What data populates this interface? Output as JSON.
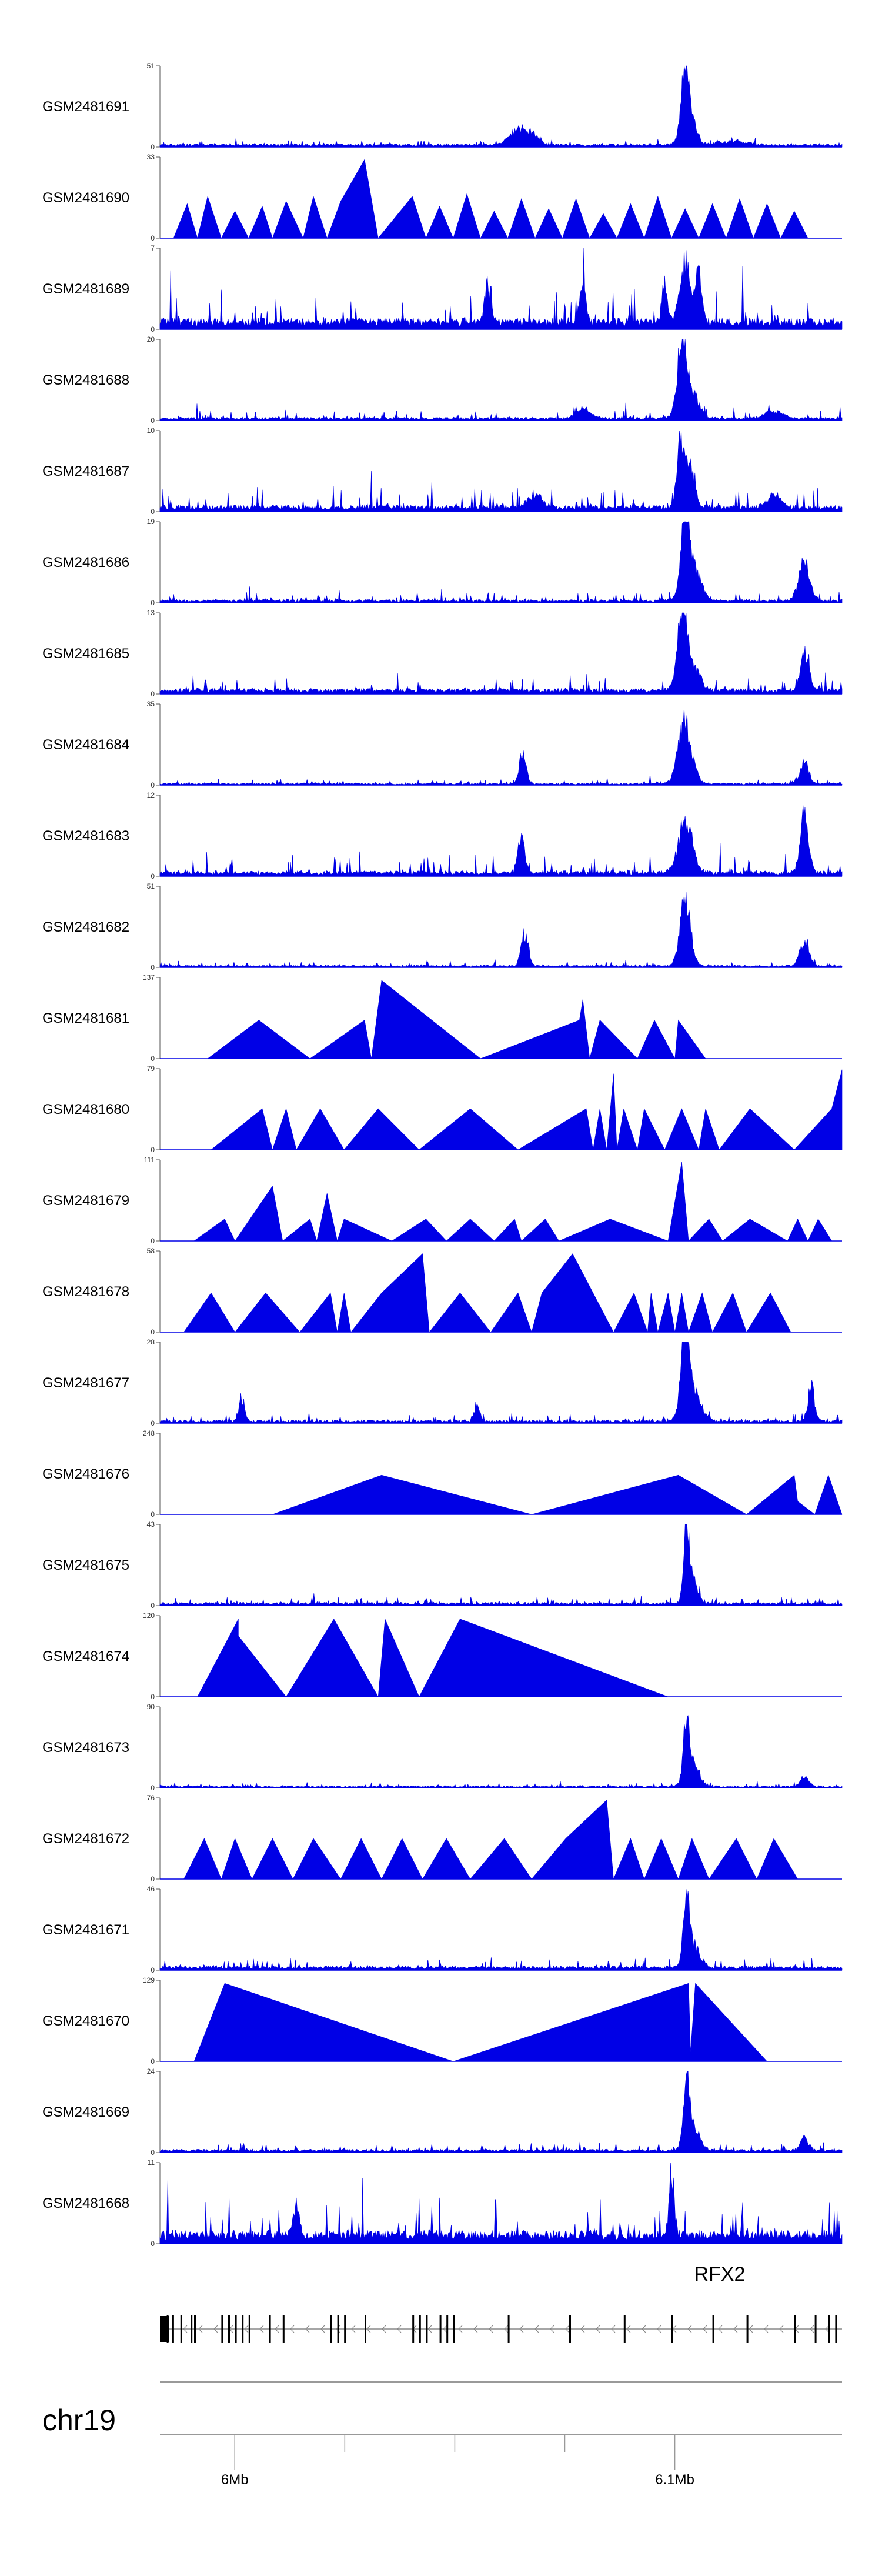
{
  "figure": {
    "gene_name": "RFX2",
    "chromosome": "chr19",
    "strand": "minus",
    "axis_tick_labels": [
      "6Mb",
      "6.1Mb"
    ]
  },
  "chart_data": {
    "type": "area",
    "title": "",
    "xlabel": "chr19",
    "ylabel": "",
    "genome_region": {
      "chromosome": "chr19",
      "start_bp": 5983000,
      "end_bp": 6138000
    },
    "x_ticks": [
      {
        "pos_bp": 6000000,
        "label": "6Mb"
      },
      {
        "pos_bp": 6100000,
        "label": "6.1Mb"
      }
    ],
    "x_minor_ticks_bp": [
      6025000,
      6050000,
      6075000
    ],
    "fill_color": "#0000e6",
    "tracks": [
      {
        "name": "GSM2481691",
        "ymin": 0,
        "ymax": 51,
        "style": "continuous",
        "baseline": 0.03,
        "noise": 0.05,
        "seed": 11,
        "peaks": [
          [
            0.525,
            0.012,
            0.24
          ],
          [
            0.545,
            0.01,
            0.15
          ],
          [
            0.77,
            0.005,
            0.96
          ],
          [
            0.775,
            0.01,
            0.45
          ],
          [
            0.84,
            0.02,
            0.06
          ]
        ]
      },
      {
        "name": "GSM2481690",
        "ymin": 0,
        "ymax": 33,
        "style": "triangles",
        "seed": 12,
        "x": [
          0.02,
          0.04,
          0.055,
          0.07,
          0.09,
          0.11,
          0.13,
          0.15,
          0.165,
          0.185,
          0.21,
          0.225,
          0.245,
          0.265,
          0.3,
          0.32,
          0.37,
          0.39,
          0.41,
          0.43,
          0.45,
          0.47,
          0.49,
          0.51,
          0.53,
          0.55,
          0.57,
          0.59,
          0.61,
          0.63,
          0.65,
          0.67,
          0.69,
          0.71,
          0.73,
          0.75,
          0.77,
          0.79,
          0.81,
          0.83,
          0.85,
          0.87,
          0.89,
          0.91,
          0.93,
          0.95,
          0.97
        ],
        "y": [
          0,
          14,
          0,
          17,
          0,
          11,
          0,
          13,
          0,
          15,
          0,
          17,
          0,
          15,
          32,
          0,
          17,
          0,
          13,
          0,
          18,
          0,
          11,
          0,
          16,
          0,
          12,
          0,
          16,
          0,
          10,
          0,
          14,
          0,
          17,
          0,
          12,
          0,
          14,
          0,
          16,
          0,
          14,
          0,
          11,
          0,
          0
        ]
      },
      {
        "name": "GSM2481689",
        "ymin": 0,
        "ymax": 7,
        "style": "continuous",
        "baseline": 0.1,
        "noise": 0.42,
        "seed": 13,
        "peaks": [
          [
            0.77,
            0.008,
            0.95
          ],
          [
            0.79,
            0.005,
            0.7
          ],
          [
            0.74,
            0.004,
            0.6
          ],
          [
            0.62,
            0.004,
            0.65
          ],
          [
            0.48,
            0.004,
            0.6
          ]
        ]
      },
      {
        "name": "GSM2481688",
        "ymin": 0,
        "ymax": 20,
        "style": "continuous",
        "baseline": 0.03,
        "noise": 0.1,
        "seed": 14,
        "peaks": [
          [
            0.765,
            0.006,
            0.92
          ],
          [
            0.775,
            0.012,
            0.5
          ],
          [
            0.62,
            0.01,
            0.15
          ],
          [
            0.9,
            0.012,
            0.12
          ]
        ]
      },
      {
        "name": "GSM2481687",
        "ymin": 0,
        "ymax": 10,
        "style": "continuous",
        "baseline": 0.06,
        "noise": 0.25,
        "seed": 15,
        "peaks": [
          [
            0.762,
            0.004,
            0.95
          ],
          [
            0.775,
            0.008,
            0.75
          ],
          [
            0.55,
            0.01,
            0.2
          ],
          [
            0.9,
            0.01,
            0.2
          ]
        ]
      },
      {
        "name": "GSM2481686",
        "ymin": 0,
        "ymax": 19,
        "style": "continuous",
        "baseline": 0.03,
        "noise": 0.1,
        "seed": 16,
        "peaks": [
          [
            0.77,
            0.006,
            0.95
          ],
          [
            0.78,
            0.012,
            0.55
          ],
          [
            0.945,
            0.008,
            0.6
          ]
        ]
      },
      {
        "name": "GSM2481685",
        "ymin": 0,
        "ymax": 13,
        "style": "continuous",
        "baseline": 0.05,
        "noise": 0.18,
        "seed": 17,
        "peaks": [
          [
            0.765,
            0.006,
            0.92
          ],
          [
            0.775,
            0.012,
            0.55
          ],
          [
            0.945,
            0.006,
            0.55
          ]
        ]
      },
      {
        "name": "GSM2481684",
        "ymin": 0,
        "ymax": 35,
        "style": "continuous",
        "baseline": 0.02,
        "noise": 0.05,
        "seed": 18,
        "peaks": [
          [
            0.532,
            0.005,
            0.5
          ],
          [
            0.77,
            0.01,
            0.95
          ],
          [
            0.945,
            0.006,
            0.35
          ]
        ]
      },
      {
        "name": "GSM2481683",
        "ymin": 0,
        "ymax": 12,
        "style": "continuous",
        "baseline": 0.05,
        "noise": 0.2,
        "seed": 19,
        "peaks": [
          [
            0.53,
            0.005,
            0.5
          ],
          [
            0.77,
            0.01,
            0.85
          ],
          [
            0.945,
            0.006,
            0.95
          ]
        ]
      },
      {
        "name": "GSM2481682",
        "ymin": 0,
        "ymax": 51,
        "style": "continuous",
        "baseline": 0.02,
        "noise": 0.05,
        "seed": 20,
        "peaks": [
          [
            0.535,
            0.005,
            0.55
          ],
          [
            0.77,
            0.008,
            0.95
          ],
          [
            0.945,
            0.007,
            0.4
          ]
        ]
      },
      {
        "name": "GSM2481681",
        "ymin": 0,
        "ymax": 137,
        "style": "triangles",
        "seed": 21,
        "x": [
          0.07,
          0.145,
          0.22,
          0.3,
          0.31,
          0.325,
          0.47,
          0.615,
          0.62,
          0.63,
          0.645,
          0.7,
          0.725,
          0.755,
          0.76,
          0.8,
          0.915
        ],
        "y": [
          0,
          65,
          0,
          65,
          0,
          132,
          0,
          65,
          100,
          0,
          65,
          0,
          65,
          0,
          65,
          0,
          0
        ]
      },
      {
        "name": "GSM2481680",
        "ymin": 0,
        "ymax": 79,
        "style": "triangles",
        "seed": 22,
        "x": [
          0.075,
          0.15,
          0.165,
          0.185,
          0.2,
          0.235,
          0.27,
          0.32,
          0.38,
          0.455,
          0.525,
          0.625,
          0.635,
          0.645,
          0.655,
          0.665,
          0.67,
          0.68,
          0.7,
          0.71,
          0.74,
          0.765,
          0.79,
          0.8,
          0.82,
          0.865,
          0.93,
          0.985,
          1.0
        ],
        "y": [
          0,
          40,
          0,
          40,
          0,
          40,
          0,
          40,
          0,
          40,
          0,
          40,
          0,
          40,
          0,
          74,
          0,
          40,
          0,
          40,
          0,
          40,
          0,
          40,
          0,
          40,
          0,
          40,
          78
        ]
      },
      {
        "name": "GSM2481679",
        "ymin": 0,
        "ymax": 111,
        "style": "triangles",
        "seed": 23,
        "x": [
          0.05,
          0.095,
          0.11,
          0.165,
          0.18,
          0.22,
          0.23,
          0.245,
          0.26,
          0.27,
          0.34,
          0.39,
          0.42,
          0.455,
          0.49,
          0.52,
          0.53,
          0.565,
          0.585,
          0.66,
          0.745,
          0.765,
          0.775,
          0.805,
          0.825,
          0.865,
          0.92,
          0.935,
          0.95,
          0.965,
          0.985
        ],
        "y": [
          0,
          30,
          0,
          75,
          0,
          30,
          0,
          65,
          0,
          30,
          0,
          30,
          0,
          30,
          0,
          30,
          0,
          30,
          0,
          30,
          0,
          108,
          0,
          30,
          0,
          30,
          0,
          30,
          0,
          30,
          0
        ]
      },
      {
        "name": "GSM2481678",
        "ymin": 0,
        "ymax": 58,
        "style": "triangles",
        "seed": 24,
        "x": [
          0.035,
          0.075,
          0.11,
          0.155,
          0.205,
          0.25,
          0.26,
          0.27,
          0.28,
          0.325,
          0.385,
          0.395,
          0.44,
          0.485,
          0.525,
          0.545,
          0.56,
          0.605,
          0.665,
          0.695,
          0.715,
          0.72,
          0.73,
          0.745,
          0.755,
          0.765,
          0.775,
          0.795,
          0.81,
          0.84,
          0.86,
          0.895,
          0.925,
          0.975
        ],
        "y": [
          0,
          28,
          0,
          28,
          0,
          28,
          0,
          28,
          0,
          28,
          56,
          0,
          28,
          0,
          28,
          0,
          28,
          56,
          0,
          28,
          0,
          28,
          0,
          28,
          0,
          28,
          0,
          28,
          0,
          28,
          0,
          28,
          0,
          0
        ]
      },
      {
        "name": "GSM2481677",
        "ymin": 0,
        "ymax": 28,
        "style": "continuous",
        "baseline": 0.03,
        "noise": 0.08,
        "seed": 25,
        "peaks": [
          [
            0.12,
            0.004,
            0.35
          ],
          [
            0.465,
            0.004,
            0.28
          ],
          [
            0.77,
            0.006,
            0.95
          ],
          [
            0.78,
            0.012,
            0.5
          ],
          [
            0.955,
            0.005,
            0.55
          ]
        ]
      },
      {
        "name": "GSM2481676",
        "ymin": 0,
        "ymax": 248,
        "style": "triangles",
        "seed": 26,
        "x": [
          0.165,
          0.325,
          0.545,
          0.76,
          0.86,
          0.93,
          0.935,
          0.96,
          0.98,
          1.0
        ],
        "y": [
          0,
          120,
          0,
          120,
          0,
          120,
          40,
          0,
          120,
          0
        ]
      },
      {
        "name": "GSM2481675",
        "ymin": 0,
        "ymax": 43,
        "style": "continuous",
        "baseline": 0.03,
        "noise": 0.08,
        "seed": 27,
        "peaks": [
          [
            0.772,
            0.004,
            0.95
          ],
          [
            0.78,
            0.008,
            0.4
          ]
        ]
      },
      {
        "name": "GSM2481674",
        "ymin": 0,
        "ymax": 120,
        "style": "triangles",
        "seed": 28,
        "x": [
          0.055,
          0.115,
          0.115,
          0.185,
          0.255,
          0.32,
          0.33,
          0.38,
          0.44,
          0.745
        ],
        "y": [
          0,
          115,
          90,
          0,
          115,
          0,
          115,
          0,
          115,
          0
        ]
      },
      {
        "name": "GSM2481673",
        "ymin": 0,
        "ymax": 90,
        "style": "continuous",
        "baseline": 0.02,
        "noise": 0.05,
        "seed": 29,
        "peaks": [
          [
            0.772,
            0.004,
            0.95
          ],
          [
            0.78,
            0.01,
            0.35
          ],
          [
            0.945,
            0.006,
            0.15
          ]
        ]
      },
      {
        "name": "GSM2481672",
        "ymin": 0,
        "ymax": 76,
        "style": "triangles",
        "seed": 30,
        "x": [
          0.035,
          0.065,
          0.09,
          0.11,
          0.135,
          0.165,
          0.195,
          0.225,
          0.265,
          0.295,
          0.325,
          0.355,
          0.385,
          0.42,
          0.455,
          0.505,
          0.545,
          0.595,
          0.655,
          0.665,
          0.69,
          0.71,
          0.735,
          0.76,
          0.78,
          0.805,
          0.845,
          0.875,
          0.9,
          0.935,
          0.975
        ],
        "y": [
          0,
          38,
          0,
          38,
          0,
          38,
          0,
          38,
          0,
          38,
          0,
          38,
          0,
          38,
          0,
          38,
          0,
          38,
          74,
          0,
          38,
          0,
          38,
          0,
          38,
          0,
          38,
          0,
          38,
          0,
          0
        ]
      },
      {
        "name": "GSM2481671",
        "ymin": 0,
        "ymax": 46,
        "style": "continuous",
        "baseline": 0.04,
        "noise": 0.1,
        "seed": 31,
        "peaks": [
          [
            0.772,
            0.004,
            0.95
          ],
          [
            0.78,
            0.01,
            0.4
          ]
        ]
      },
      {
        "name": "GSM2481670",
        "ymin": 0,
        "ymax": 129,
        "style": "triangles",
        "seed": 32,
        "x": [
          0.05,
          0.095,
          0.43,
          0.775,
          0.778,
          0.785,
          0.89
        ],
        "y": [
          0,
          124,
          0,
          124,
          15,
          124,
          0
        ]
      },
      {
        "name": "GSM2481669",
        "ymin": 0,
        "ymax": 24,
        "style": "continuous",
        "baseline": 0.03,
        "noise": 0.08,
        "seed": 33,
        "peaks": [
          [
            0.772,
            0.004,
            0.95
          ],
          [
            0.78,
            0.01,
            0.4
          ],
          [
            0.945,
            0.006,
            0.2
          ]
        ]
      },
      {
        "name": "GSM2481668",
        "ymin": 0,
        "ymax": 11,
        "style": "continuous",
        "baseline": 0.12,
        "noise": 0.45,
        "seed": 34,
        "peaks": [
          [
            0.75,
            0.004,
            0.95
          ],
          [
            0.2,
            0.004,
            0.5
          ]
        ]
      }
    ],
    "gene_model": {
      "name": "RFX2",
      "strand": "minus",
      "exons": [
        0.0,
        0.01,
        0.018,
        0.03,
        0.045,
        0.05,
        0.09,
        0.1,
        0.11,
        0.12,
        0.13,
        0.16,
        0.18,
        0.25,
        0.26,
        0.27,
        0.3,
        0.37,
        0.38,
        0.39,
        0.41,
        0.42,
        0.43,
        0.51,
        0.6,
        0.68,
        0.75,
        0.81,
        0.86,
        0.93,
        0.96,
        0.98,
        0.99
      ]
    }
  }
}
